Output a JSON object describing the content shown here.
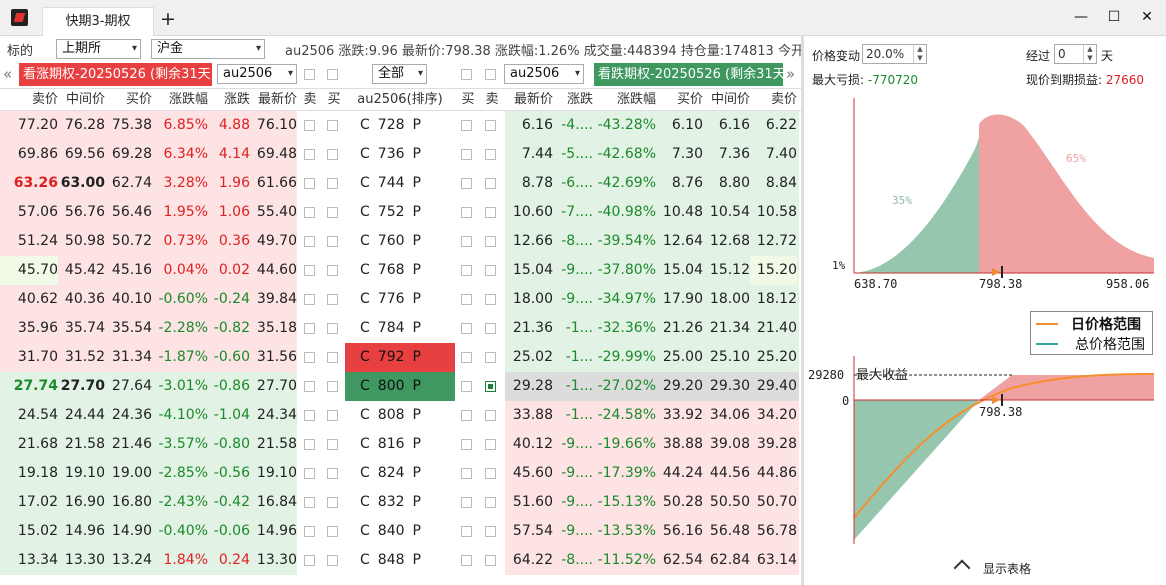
{
  "window": {
    "tab_title": "快期3-期权",
    "add_tab": "+",
    "min": "—",
    "max": "☐",
    "close": "✕"
  },
  "toolbar": {
    "label_underlying": "标的",
    "exchange": "上期所",
    "product": "沪金",
    "quote": "au2506 涨跌:9.96 最新价:798.38 涨跌幅:1.26% 成交量:448394 持仓量:174813 今开:7"
  },
  "row2": {
    "call_banner": "看涨期权-20250526 (剩余31天)",
    "put_banner": "看跌期权-20250526 (剩余31天)",
    "left_contract": "au2506",
    "filter": "全部",
    "right_contract": "au2506",
    "nav_left": "«",
    "nav_right": "»"
  },
  "headers": {
    "ask": "卖价",
    "mid": "中间价",
    "bid": "买价",
    "pct": "涨跌幅",
    "chg": "涨跌",
    "last": "最新价",
    "sell": "卖",
    "buy": "买",
    "center": "au2506(排序)",
    "r_buy": "买",
    "r_sell": "卖",
    "r_last": "最新价",
    "r_chg": "涨跌",
    "r_pct": "涨跌幅",
    "r_bid": "买价",
    "r_mid": "中间价",
    "r_ask": "卖价"
  },
  "rows": [
    {
      "c_ask": "77.20",
      "c_mid": "76.28",
      "c_bid": "75.38",
      "c_pct": "6.85%",
      "c_chg": "4.88",
      "c_last": "76.10",
      "strike": "728",
      "p_last": "6.16",
      "p_chg": "-4....",
      "p_pct": "-43.28%",
      "p_bid": "6.10",
      "p_mid": "6.16",
      "p_ask": "6.22"
    },
    {
      "c_ask": "69.86",
      "c_mid": "69.56",
      "c_bid": "69.28",
      "c_pct": "6.34%",
      "c_chg": "4.14",
      "c_last": "69.48",
      "strike": "736",
      "p_last": "7.44",
      "p_chg": "-5....",
      "p_pct": "-42.68%",
      "p_bid": "7.30",
      "p_mid": "7.36",
      "p_ask": "7.40"
    },
    {
      "c_ask": "63.26",
      "c_mid": "63.00",
      "c_bid": "62.74",
      "c_pct": "3.28%",
      "c_chg": "1.96",
      "c_last": "61.66",
      "strike": "744",
      "p_last": "8.78",
      "p_chg": "-6....",
      "p_pct": "-42.69%",
      "p_bid": "8.76",
      "p_mid": "8.80",
      "p_ask": "8.84"
    },
    {
      "c_ask": "57.06",
      "c_mid": "56.76",
      "c_bid": "56.46",
      "c_pct": "1.95%",
      "c_chg": "1.06",
      "c_last": "55.40",
      "strike": "752",
      "p_last": "10.60",
      "p_chg": "-7....",
      "p_pct": "-40.98%",
      "p_bid": "10.48",
      "p_mid": "10.54",
      "p_ask": "10.58"
    },
    {
      "c_ask": "51.24",
      "c_mid": "50.98",
      "c_bid": "50.72",
      "c_pct": "0.73%",
      "c_chg": "0.36",
      "c_last": "49.70",
      "strike": "760",
      "p_last": "12.66",
      "p_chg": "-8....",
      "p_pct": "-39.54%",
      "p_bid": "12.64",
      "p_mid": "12.68",
      "p_ask": "12.72"
    },
    {
      "c_ask": "45.70",
      "c_mid": "45.42",
      "c_bid": "45.16",
      "c_pct": "0.04%",
      "c_chg": "0.02",
      "c_last": "44.60",
      "strike": "768",
      "p_last": "15.04",
      "p_chg": "-9....",
      "p_pct": "-37.80%",
      "p_bid": "15.04",
      "p_mid": "15.12",
      "p_ask": "15.20"
    },
    {
      "c_ask": "40.62",
      "c_mid": "40.36",
      "c_bid": "40.10",
      "c_pct": "-0.60%",
      "c_chg": "-0.24",
      "c_last": "39.84",
      "strike": "776",
      "p_last": "18.00",
      "p_chg": "-9....",
      "p_pct": "-34.97%",
      "p_bid": "17.90",
      "p_mid": "18.00",
      "p_ask": "18.12"
    },
    {
      "c_ask": "35.96",
      "c_mid": "35.74",
      "c_bid": "35.54",
      "c_pct": "-2.28%",
      "c_chg": "-0.82",
      "c_last": "35.18",
      "strike": "784",
      "p_last": "21.36",
      "p_chg": "-1...",
      "p_pct": "-32.36%",
      "p_bid": "21.26",
      "p_mid": "21.34",
      "p_ask": "21.40"
    },
    {
      "c_ask": "31.70",
      "c_mid": "31.52",
      "c_bid": "31.34",
      "c_pct": "-1.87%",
      "c_chg": "-0.60",
      "c_last": "31.56",
      "strike": "792",
      "p_last": "25.02",
      "p_chg": "-1...",
      "p_pct": "-29.99%",
      "p_bid": "25.00",
      "p_mid": "25.10",
      "p_ask": "25.20"
    },
    {
      "c_ask": "27.74",
      "c_mid": "27.70",
      "c_bid": "27.64",
      "c_pct": "-3.01%",
      "c_chg": "-0.86",
      "c_last": "27.70",
      "strike": "800",
      "p_last": "29.28",
      "p_chg": "-1...",
      "p_pct": "-27.02%",
      "p_bid": "29.20",
      "p_mid": "29.30",
      "p_ask": "29.40"
    },
    {
      "c_ask": "24.54",
      "c_mid": "24.44",
      "c_bid": "24.36",
      "c_pct": "-4.10%",
      "c_chg": "-1.04",
      "c_last": "24.34",
      "strike": "808",
      "p_last": "33.88",
      "p_chg": "-1...",
      "p_pct": "-24.58%",
      "p_bid": "33.92",
      "p_mid": "34.06",
      "p_ask": "34.20"
    },
    {
      "c_ask": "21.68",
      "c_mid": "21.58",
      "c_bid": "21.46",
      "c_pct": "-3.57%",
      "c_chg": "-0.80",
      "c_last": "21.58",
      "strike": "816",
      "p_last": "40.12",
      "p_chg": "-9....",
      "p_pct": "-19.66%",
      "p_bid": "38.88",
      "p_mid": "39.08",
      "p_ask": "39.28"
    },
    {
      "c_ask": "19.18",
      "c_mid": "19.10",
      "c_bid": "19.00",
      "c_pct": "-2.85%",
      "c_chg": "-0.56",
      "c_last": "19.10",
      "strike": "824",
      "p_last": "45.60",
      "p_chg": "-9....",
      "p_pct": "-17.39%",
      "p_bid": "44.24",
      "p_mid": "44.56",
      "p_ask": "44.86"
    },
    {
      "c_ask": "17.02",
      "c_mid": "16.90",
      "c_bid": "16.80",
      "c_pct": "-2.43%",
      "c_chg": "-0.42",
      "c_last": "16.84",
      "strike": "832",
      "p_last": "51.60",
      "p_chg": "-9....",
      "p_pct": "-15.13%",
      "p_bid": "50.28",
      "p_mid": "50.50",
      "p_ask": "50.70"
    },
    {
      "c_ask": "15.02",
      "c_mid": "14.96",
      "c_bid": "14.90",
      "c_pct": "-0.40%",
      "c_chg": "-0.06",
      "c_last": "14.96",
      "strike": "840",
      "p_last": "57.54",
      "p_chg": "-9....",
      "p_pct": "-13.53%",
      "p_bid": "56.16",
      "p_mid": "56.48",
      "p_ask": "56.78"
    },
    {
      "c_ask": "13.34",
      "c_mid": "13.30",
      "c_bid": "13.24",
      "c_pct": "1.84%",
      "c_chg": "0.24",
      "c_last": "13.30",
      "strike": "848",
      "p_last": "64.22",
      "p_chg": "-8....",
      "p_pct": "-11.52%",
      "p_bid": "62.54",
      "p_mid": "62.84",
      "p_ask": "63.14"
    }
  ],
  "row_letters": {
    "c": "C",
    "p": "P"
  },
  "panel": {
    "price_change_label": "价格变动",
    "price_change_value": "20.0%",
    "after_label": "经过",
    "after_value": "0",
    "days_label": "天",
    "max_loss_label": "最大亏损:",
    "max_loss_value": "-770720",
    "to_expiry_label": "现价到期损益:",
    "to_expiry_value": "27660",
    "dist_left_pct": "35%",
    "dist_right_pct": "65%",
    "dist_floor": "1%",
    "x_low": "638.70",
    "x_mid": "798.38",
    "x_high": "958.06",
    "legend_day": "日价格范围",
    "legend_total": "总价格范围",
    "max_gain_value": "29280",
    "max_gain_label": "最大收益",
    "zero": "0",
    "pl_price": "798.38",
    "show_table": "显示表格"
  },
  "colors": {
    "red": "#e02020",
    "green": "#1a8a2a",
    "call_banner": "#e84040",
    "put_banner": "#3e9860"
  }
}
